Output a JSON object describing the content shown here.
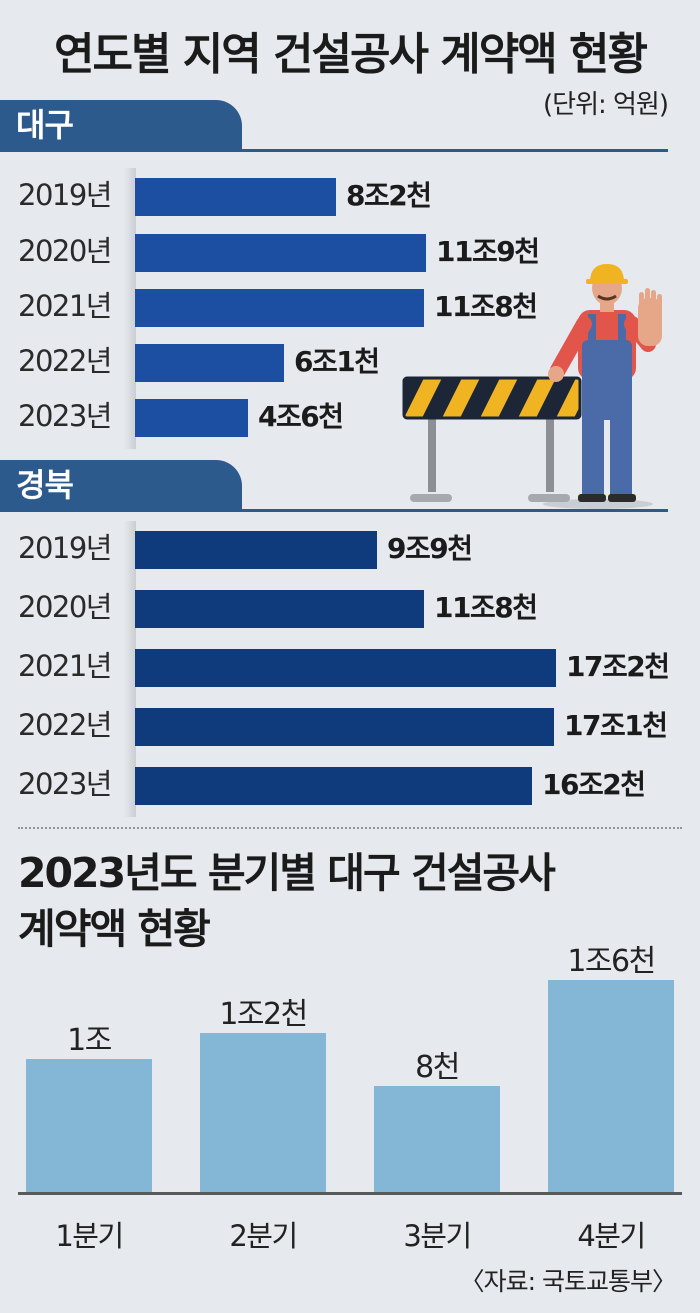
{
  "title": "연도별 지역 건설공사 계약액 현황",
  "unit": "(단위: 억원)",
  "regions": [
    {
      "name": "대구"
    },
    {
      "name": "경북"
    }
  ],
  "chart_data": [
    {
      "type": "bar",
      "orientation": "horizontal",
      "title": "대구",
      "categories": [
        "2019년",
        "2020년",
        "2021년",
        "2022년",
        "2023년"
      ],
      "values": [
        82000,
        119000,
        118000,
        61000,
        46000
      ],
      "value_labels": [
        "8조2천",
        "11조9천",
        "11조8천",
        "6조1천",
        "4조6천"
      ],
      "color": "#1c4fa2"
    },
    {
      "type": "bar",
      "orientation": "horizontal",
      "title": "경북",
      "categories": [
        "2019년",
        "2020년",
        "2021년",
        "2022년",
        "2023년"
      ],
      "values": [
        99000,
        118000,
        172000,
        171000,
        162000
      ],
      "value_labels": [
        "9조9천",
        "11조8천",
        "17조2천",
        "17조1천",
        "16조2천"
      ],
      "color": "#0f3a7c"
    },
    {
      "type": "bar",
      "orientation": "vertical",
      "title": "2023년도 분기별 대구 건설공사 계약액 현황",
      "categories": [
        "1분기",
        "2분기",
        "3분기",
        "4분기"
      ],
      "values": [
        10000,
        12000,
        8000,
        16000
      ],
      "value_labels": [
        "1조",
        "1조2천",
        "8천",
        "1조6천"
      ],
      "color": "#84b6d5"
    }
  ],
  "section2_title_line1": "2023년도 분기별 대구 건설공사",
  "section2_title_line2": "계약액 현황",
  "source": "〈자료: 국토교통부〉",
  "illustration": {
    "icon": "construction-worker-with-barrier-icon"
  }
}
